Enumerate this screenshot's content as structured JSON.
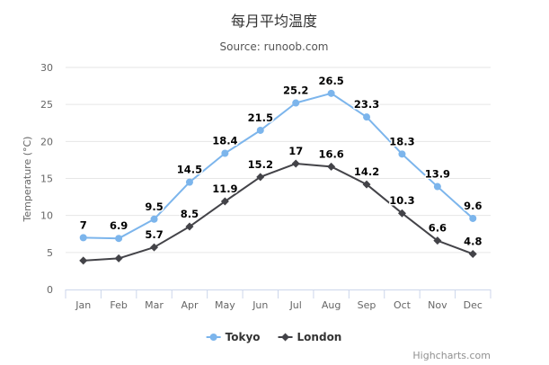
{
  "chart_data": {
    "type": "line",
    "title": "每月平均温度",
    "subtitle": "Source: runoob.com",
    "ylabel": "Temperature (°C)",
    "xlabel": "",
    "categories": [
      "Jan",
      "Feb",
      "Mar",
      "Apr",
      "May",
      "Jun",
      "Jul",
      "Aug",
      "Sep",
      "Oct",
      "Nov",
      "Dec"
    ],
    "ylim": [
      0,
      30
    ],
    "yticks": [
      0,
      5,
      10,
      15,
      20,
      25,
      30
    ],
    "grid": true,
    "legend": "bottom-center",
    "series": [
      {
        "name": "Tokyo",
        "color": "#7cb5ec",
        "marker": "circle",
        "values": [
          7.0,
          6.9,
          9.5,
          14.5,
          18.4,
          21.5,
          25.2,
          26.5,
          23.3,
          18.3,
          13.9,
          9.6
        ]
      },
      {
        "name": "London",
        "color": "#434348",
        "marker": "diamond",
        "values": [
          3.9,
          4.2,
          5.7,
          8.5,
          11.9,
          15.2,
          17.0,
          16.6,
          14.2,
          10.3,
          6.6,
          4.8
        ]
      }
    ],
    "data_labels": {
      "Tokyo": [
        "7",
        "6.9",
        "9.5",
        "14.5",
        "18.4",
        "21.5",
        "25.2",
        "26.5",
        "23.3",
        "18.3",
        "13.9",
        "9.6"
      ],
      "London": [
        "",
        "",
        "5.7",
        "8.5",
        "11.9",
        "15.2",
        "17",
        "16.6",
        "14.2",
        "10.3",
        "6.6",
        "4.8"
      ]
    },
    "credits": "Highcharts.com"
  }
}
